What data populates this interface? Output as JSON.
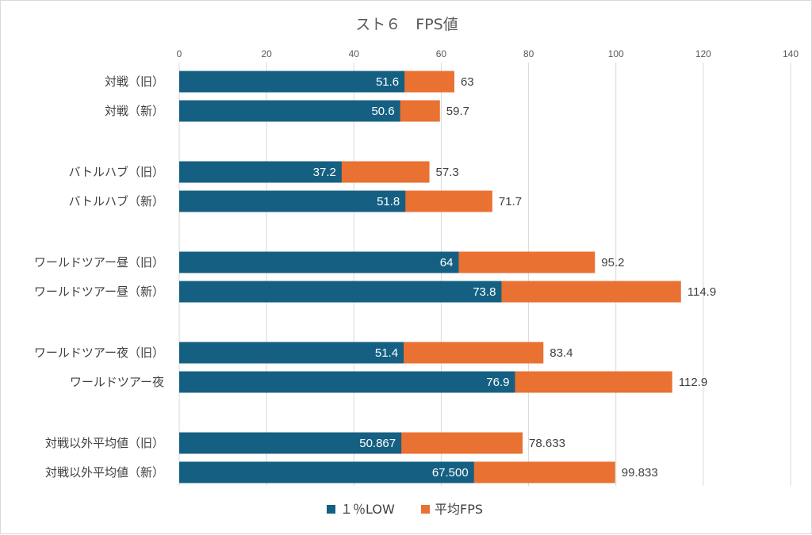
{
  "chart_data": {
    "type": "bar",
    "orientation": "horizontal",
    "stacked": false,
    "overlapped": true,
    "title": "スト６　FPS値",
    "categories": [
      "対戦（旧）",
      "対戦（新）",
      "バトルハブ（旧）",
      "バトルハブ（新）",
      "ワールドツアー昼（旧）",
      "ワールドツアー昼（新）",
      "ワールドツアー夜（旧）",
      "ワールドツアー夜",
      "対戦以外平均値（旧）",
      "対戦以外平均値（新）"
    ],
    "series": [
      {
        "name": "１％LOW",
        "color": "#156082",
        "values": [
          51.6,
          50.6,
          37.2,
          51.8,
          64,
          73.8,
          51.4,
          76.9,
          50.867,
          67.5
        ],
        "labels": [
          "51.6",
          "50.6",
          "37.2",
          "51.8",
          "64",
          "73.8",
          "51.4",
          "76.9",
          "50.867",
          "67.500"
        ]
      },
      {
        "name": "平均FPS",
        "color": "#E97132",
        "values": [
          63,
          59.7,
          57.3,
          71.7,
          95.2,
          114.9,
          83.4,
          112.9,
          78.633,
          99.833
        ],
        "labels": [
          "63",
          "59.7",
          "57.3",
          "71.7",
          "95.2",
          "114.9",
          "83.4",
          "112.9",
          "78.633",
          "99.833"
        ]
      }
    ],
    "xlim": [
      0,
      140
    ],
    "xticks": [
      0,
      20,
      40,
      60,
      80,
      100,
      120,
      140
    ],
    "x_axis_position": "top",
    "grid": true,
    "legend": "bottom"
  }
}
